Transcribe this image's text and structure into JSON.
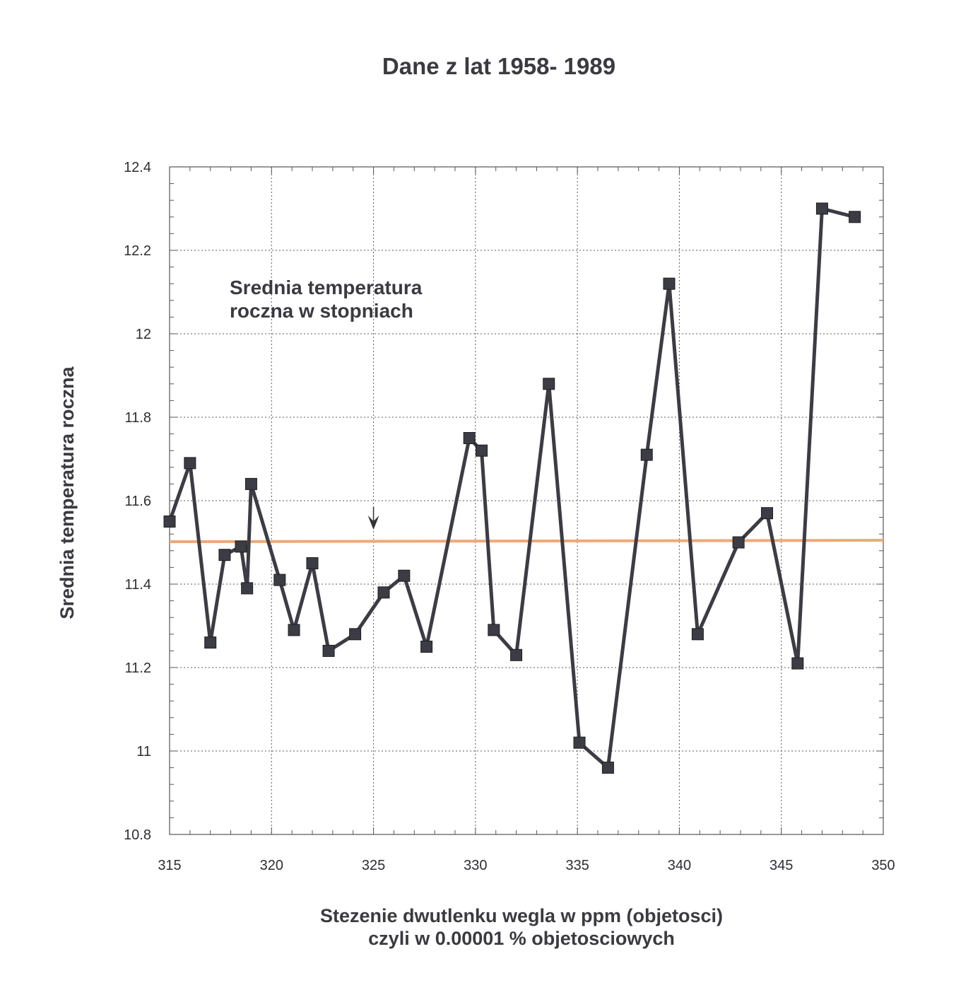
{
  "chart_data": {
    "type": "line",
    "title": "Dane z lat 1958- 1989",
    "xlabel": [
      "Stezenie dwutlenku wegla w ppm (objetosci)",
      "czyli w 0.00001 % objetosciowych"
    ],
    "ylabel": "Srednia temperatura roczna",
    "annotation": [
      "Srednia temperatura",
      "roczna w stopniach"
    ],
    "xlim": [
      315,
      350
    ],
    "ylim": [
      10.8,
      12.4
    ],
    "xticks": [
      315,
      320,
      325,
      330,
      335,
      340,
      345,
      350
    ],
    "xtick_labels": [
      "315",
      "320",
      "325",
      "330",
      "335",
      "340",
      "345",
      "350"
    ],
    "yticks": [
      10.8,
      11,
      11.2,
      11.4,
      11.6,
      11.8,
      12,
      12.2,
      12.4
    ],
    "ytick_labels": [
      "10.8",
      "11",
      "11.2",
      "11.4",
      "11.6",
      "11.8",
      "12",
      "12.2",
      "12.4"
    ],
    "grid": true,
    "reference_line": {
      "y": 11.5,
      "color": "#f0a878"
    },
    "arrow_marker": {
      "x": 325,
      "y": 11.5
    },
    "series": [
      {
        "name": "Srednia temperatura roczna w stopniach",
        "color": "#3c3c44",
        "x": [
          315.0,
          316.0,
          317.0,
          317.7,
          318.5,
          318.8,
          319.0,
          320.4,
          321.1,
          322.0,
          322.8,
          324.1,
          325.5,
          326.5,
          327.6,
          329.7,
          330.3,
          330.9,
          332.0,
          333.6,
          335.1,
          336.5,
          338.4,
          339.5,
          340.9,
          342.9,
          344.3,
          345.8,
          347.0,
          348.6
        ],
        "y": [
          11.55,
          11.69,
          11.26,
          11.47,
          11.49,
          11.39,
          11.64,
          11.41,
          11.29,
          11.45,
          11.24,
          11.28,
          11.38,
          11.42,
          11.25,
          11.75,
          11.72,
          11.29,
          11.23,
          11.88,
          11.02,
          10.96,
          11.71,
          12.12,
          11.28,
          11.5,
          11.57,
          11.21,
          12.3,
          12.28
        ]
      }
    ]
  }
}
